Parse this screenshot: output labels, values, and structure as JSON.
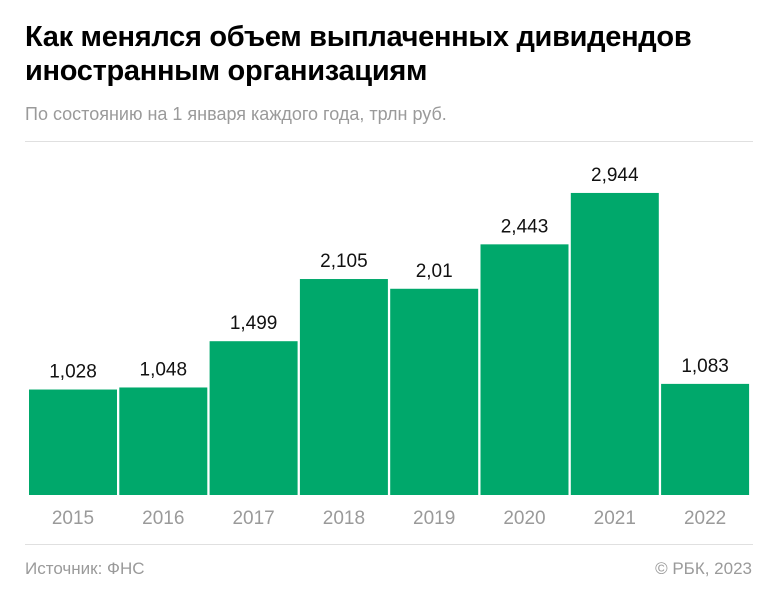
{
  "title": "Как менялся объем выплаченных дивидендов иностранным организациям",
  "subtitle": "По состоянию на 1 января каждого года, трлн руб.",
  "source": "Источник: ФНС",
  "copyright": "© РБК, 2023",
  "chart_data": {
    "type": "bar",
    "title": "Как менялся объем выплаченных дивидендов иностранным организациям",
    "subtitle": "По состоянию на 1 января каждого года, трлн руб.",
    "categories": [
      "2015",
      "2016",
      "2017",
      "2018",
      "2019",
      "2020",
      "2021",
      "2022"
    ],
    "values": [
      1.028,
      1.048,
      1.499,
      2.105,
      2.01,
      2.443,
      2.944,
      1.083
    ],
    "labels": [
      "1,028",
      "1,048",
      "1,499",
      "2,105",
      "2,01",
      "2,443",
      "2,944",
      "1,083"
    ],
    "ylim": [
      0,
      3.5
    ],
    "grid": false,
    "bar_color": "#00a86b"
  }
}
